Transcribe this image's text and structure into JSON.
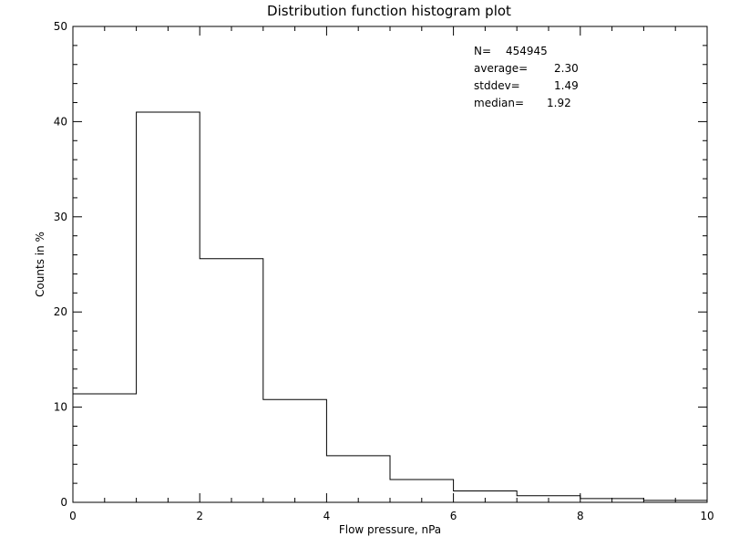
{
  "chart_data": {
    "type": "bar",
    "style": "step-histogram",
    "title": "Distribution function histogram plot",
    "xlabel": "Flow pressure, nPa",
    "ylabel": "Counts in %",
    "xlim": [
      0,
      10
    ],
    "ylim": [
      0,
      50
    ],
    "x_ticks": [
      "0",
      "2",
      "4",
      "6",
      "8",
      "10"
    ],
    "y_ticks": [
      "0",
      "10",
      "20",
      "30",
      "40",
      "50"
    ],
    "bins": [
      {
        "x0": 0,
        "x1": 1,
        "value": 11.4
      },
      {
        "x0": 1,
        "x1": 2,
        "value": 41.0
      },
      {
        "x0": 2,
        "x1": 3,
        "value": 25.6
      },
      {
        "x0": 3,
        "x1": 4,
        "value": 10.8
      },
      {
        "x0": 4,
        "x1": 5,
        "value": 4.9
      },
      {
        "x0": 5,
        "x1": 6,
        "value": 2.4
      },
      {
        "x0": 6,
        "x1": 7,
        "value": 1.2
      },
      {
        "x0": 7,
        "x1": 8,
        "value": 0.7
      },
      {
        "x0": 8,
        "x1": 9,
        "value": 0.4
      },
      {
        "x0": 9,
        "x1": 10,
        "value": 0.2
      }
    ],
    "grid": false,
    "stats": [
      {
        "label": "N=",
        "value": "454945"
      },
      {
        "label": "average=",
        "value": "2.30"
      },
      {
        "label": "stddev=",
        "value": "1.49"
      },
      {
        "label": "median=",
        "value": "1.92"
      }
    ]
  }
}
